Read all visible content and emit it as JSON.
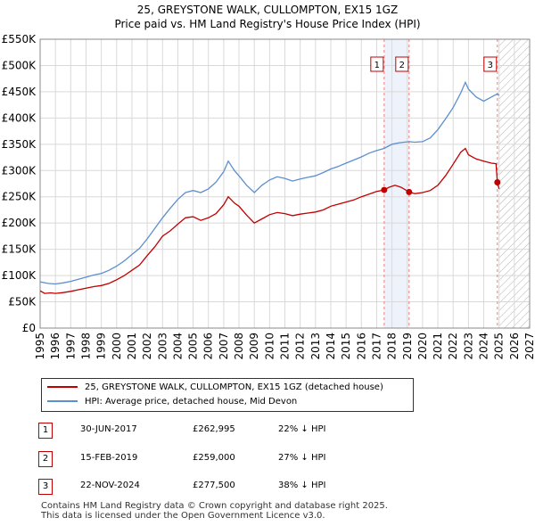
{
  "title": "25, GREYSTONE WALK, CULLOMPTON, EX15 1GZ",
  "subtitle": "Price paid vs. HM Land Registry's House Price Index (HPI)",
  "colors": {
    "property": "#c00000",
    "hpi": "#5b8fd0",
    "marker_line": "#e08080",
    "shade": "#eef2fa",
    "grid": "#d9d9d9",
    "hatch": "#b0b0b0"
  },
  "chart_data": {
    "type": "line",
    "title": "25, GREYSTONE WALK, CULLOMPTON, EX15 1GZ",
    "subtitle": "Price paid vs. HM Land Registry's House Price Index (HPI)",
    "x_range": [
      1995,
      2027
    ],
    "y_range": [
      0,
      550000
    ],
    "x_ticks": [
      "1995",
      "1996",
      "1997",
      "1998",
      "1999",
      "2000",
      "2001",
      "2002",
      "2003",
      "2004",
      "2005",
      "2006",
      "2007",
      "2008",
      "2009",
      "2010",
      "2011",
      "2012",
      "2013",
      "2014",
      "2015",
      "2016",
      "2017",
      "2018",
      "2019",
      "2020",
      "2021",
      "2022",
      "2023",
      "2024",
      "2025",
      "2026",
      "2027"
    ],
    "y_ticks": [
      {
        "value": 0,
        "label": "£0"
      },
      {
        "value": 50000,
        "label": "£50K"
      },
      {
        "value": 100000,
        "label": "£100K"
      },
      {
        "value": 150000,
        "label": "£150K"
      },
      {
        "value": 200000,
        "label": "£200K"
      },
      {
        "value": 250000,
        "label": "£250K"
      },
      {
        "value": 300000,
        "label": "£300K"
      },
      {
        "value": 350000,
        "label": "£350K"
      },
      {
        "value": 400000,
        "label": "£400K"
      },
      {
        "value": 450000,
        "label": "£450K"
      },
      {
        "value": 500000,
        "label": "£500K"
      },
      {
        "value": 550000,
        "label": "£550K"
      }
    ],
    "grid": true,
    "forecast_hatch_from": 2025.0,
    "series": [
      {
        "name": "25, GREYSTONE WALK, CULLOMPTON, EX15 1GZ (detached house)",
        "color": "#c00000",
        "points": [
          [
            1995.0,
            71000
          ],
          [
            1995.3,
            66000
          ],
          [
            1995.7,
            67000
          ],
          [
            1996.0,
            66000
          ],
          [
            1996.5,
            67500
          ],
          [
            1997.0,
            70000
          ],
          [
            1997.5,
            73000
          ],
          [
            1998.0,
            76000
          ],
          [
            1998.5,
            79000
          ],
          [
            1999.0,
            81000
          ],
          [
            1999.5,
            85000
          ],
          [
            2000.0,
            92000
          ],
          [
            2000.5,
            100000
          ],
          [
            2001.0,
            110000
          ],
          [
            2001.5,
            120000
          ],
          [
            2002.0,
            138000
          ],
          [
            2002.5,
            155000
          ],
          [
            2003.0,
            175000
          ],
          [
            2003.5,
            185000
          ],
          [
            2004.0,
            198000
          ],
          [
            2004.5,
            210000
          ],
          [
            2005.0,
            212000
          ],
          [
            2005.5,
            205000
          ],
          [
            2006.0,
            210000
          ],
          [
            2006.5,
            218000
          ],
          [
            2007.0,
            235000
          ],
          [
            2007.3,
            250000
          ],
          [
            2007.7,
            238000
          ],
          [
            2008.0,
            232000
          ],
          [
            2008.5,
            215000
          ],
          [
            2009.0,
            200000
          ],
          [
            2009.5,
            208000
          ],
          [
            2010.0,
            216000
          ],
          [
            2010.5,
            220000
          ],
          [
            2011.0,
            218000
          ],
          [
            2011.5,
            214000
          ],
          [
            2012.0,
            217000
          ],
          [
            2012.5,
            219000
          ],
          [
            2013.0,
            221000
          ],
          [
            2013.5,
            225000
          ],
          [
            2014.0,
            232000
          ],
          [
            2014.5,
            236000
          ],
          [
            2015.0,
            240000
          ],
          [
            2015.5,
            244000
          ],
          [
            2016.0,
            250000
          ],
          [
            2016.5,
            255000
          ],
          [
            2017.0,
            260000
          ],
          [
            2017.49,
            262995
          ],
          [
            2017.8,
            268000
          ],
          [
            2018.2,
            272000
          ],
          [
            2018.6,
            268000
          ],
          [
            2019.12,
            259000
          ],
          [
            2019.5,
            256000
          ],
          [
            2020.0,
            258000
          ],
          [
            2020.5,
            262000
          ],
          [
            2021.0,
            272000
          ],
          [
            2021.5,
            290000
          ],
          [
            2022.0,
            312000
          ],
          [
            2022.5,
            335000
          ],
          [
            2022.8,
            342000
          ],
          [
            2023.0,
            330000
          ],
          [
            2023.5,
            322000
          ],
          [
            2024.0,
            318000
          ],
          [
            2024.5,
            314000
          ],
          [
            2024.8,
            313000
          ],
          [
            2024.89,
            277500
          ],
          [
            2025.0,
            265000
          ]
        ]
      },
      {
        "name": "HPI: Average price, detached house, Mid Devon",
        "color": "#5b8fd0",
        "points": [
          [
            1995.0,
            88000
          ],
          [
            1995.5,
            85000
          ],
          [
            1996.0,
            84000
          ],
          [
            1996.5,
            86000
          ],
          [
            1997.0,
            89000
          ],
          [
            1997.5,
            93000
          ],
          [
            1998.0,
            97000
          ],
          [
            1998.5,
            101000
          ],
          [
            1999.0,
            104000
          ],
          [
            1999.5,
            110000
          ],
          [
            2000.0,
            118000
          ],
          [
            2000.5,
            128000
          ],
          [
            2001.0,
            140000
          ],
          [
            2001.5,
            152000
          ],
          [
            2002.0,
            170000
          ],
          [
            2002.5,
            190000
          ],
          [
            2003.0,
            210000
          ],
          [
            2003.5,
            228000
          ],
          [
            2004.0,
            245000
          ],
          [
            2004.5,
            258000
          ],
          [
            2005.0,
            262000
          ],
          [
            2005.5,
            258000
          ],
          [
            2006.0,
            265000
          ],
          [
            2006.5,
            278000
          ],
          [
            2007.0,
            298000
          ],
          [
            2007.3,
            318000
          ],
          [
            2007.7,
            300000
          ],
          [
            2008.0,
            290000
          ],
          [
            2008.5,
            272000
          ],
          [
            2009.0,
            258000
          ],
          [
            2009.5,
            272000
          ],
          [
            2010.0,
            282000
          ],
          [
            2010.5,
            288000
          ],
          [
            2011.0,
            285000
          ],
          [
            2011.5,
            280000
          ],
          [
            2012.0,
            284000
          ],
          [
            2012.5,
            287000
          ],
          [
            2013.0,
            290000
          ],
          [
            2013.5,
            296000
          ],
          [
            2014.0,
            303000
          ],
          [
            2014.5,
            308000
          ],
          [
            2015.0,
            314000
          ],
          [
            2015.5,
            320000
          ],
          [
            2016.0,
            326000
          ],
          [
            2016.5,
            333000
          ],
          [
            2017.0,
            338000
          ],
          [
            2017.49,
            342000
          ],
          [
            2018.0,
            350000
          ],
          [
            2018.5,
            353000
          ],
          [
            2019.12,
            355000
          ],
          [
            2019.5,
            354000
          ],
          [
            2020.0,
            355000
          ],
          [
            2020.5,
            362000
          ],
          [
            2021.0,
            378000
          ],
          [
            2021.5,
            398000
          ],
          [
            2022.0,
            420000
          ],
          [
            2022.5,
            448000
          ],
          [
            2022.8,
            468000
          ],
          [
            2023.0,
            455000
          ],
          [
            2023.5,
            440000
          ],
          [
            2024.0,
            432000
          ],
          [
            2024.5,
            440000
          ],
          [
            2024.89,
            446000
          ],
          [
            2025.0,
            443000
          ]
        ]
      }
    ],
    "transactions": [
      {
        "label": "1",
        "x": 2017.49,
        "price": 262995
      },
      {
        "label": "2",
        "x": 2019.12,
        "price": 259000
      },
      {
        "label": "3",
        "x": 2024.89,
        "price": 277500
      }
    ]
  },
  "legend": {
    "property_label": "25, GREYSTONE WALK, CULLOMPTON, EX15 1GZ (detached house)",
    "hpi_label": "HPI: Average price, detached house, Mid Devon"
  },
  "transactions_table": [
    {
      "num": "1",
      "date": "30-JUN-2017",
      "price": "£262,995",
      "hpi": "22% ↓ HPI"
    },
    {
      "num": "2",
      "date": "15-FEB-2019",
      "price": "£259,000",
      "hpi": "27% ↓ HPI"
    },
    {
      "num": "3",
      "date": "22-NOV-2024",
      "price": "£277,500",
      "hpi": "38% ↓ HPI"
    }
  ],
  "footer": {
    "line1": "Contains HM Land Registry data © Crown copyright and database right 2025.",
    "line2": "This data is licensed under the Open Government Licence v3.0."
  }
}
